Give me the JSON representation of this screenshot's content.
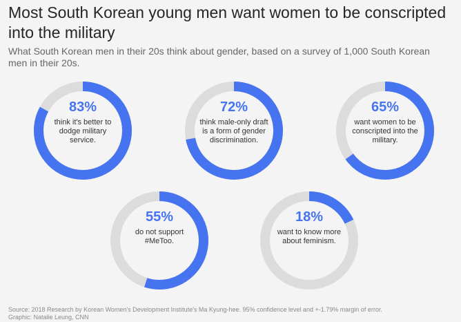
{
  "title": "Most South Korean young men want women to be conscripted into the military",
  "subtitle": "What South Korean men in their 20s think about gender, based on a survey of 1,000 South Korean men in their 20s.",
  "source_line1": "Source: 2018 Research by Korean Women's Development Institute's Ma Kyung-hee. 95% confidence level and +-1.79% margin of error.",
  "source_line2": "Graphic: Natalie Leung, CNN",
  "colors": {
    "filled": "#4673f0",
    "track": "#dcdcdc"
  },
  "chart_data": {
    "type": "pie",
    "donuts": [
      {
        "value": 83,
        "value_label": "83%",
        "label": "think it's better to dodge military service."
      },
      {
        "value": 72,
        "value_label": "72%",
        "label": "think male-only draft is a form of gender discrimination."
      },
      {
        "value": 65,
        "value_label": "65%",
        "label": "want women to be conscripted into the military."
      },
      {
        "value": 55,
        "value_label": "55%",
        "label": "do not support #MeToo."
      },
      {
        "value": 18,
        "value_label": "18%",
        "label": "want to know more about feminism."
      }
    ]
  }
}
